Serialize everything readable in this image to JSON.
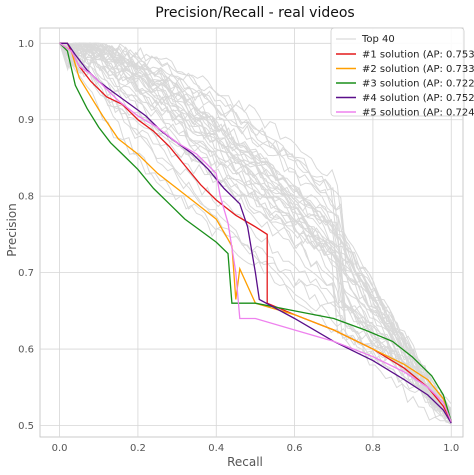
{
  "chart_data": {
    "type": "line",
    "title": "Precision/Recall - real videos",
    "xlabel": "Recall",
    "ylabel": "Precision",
    "xlim": [
      -0.05,
      1.03
    ],
    "ylim": [
      0.485,
      1.02
    ],
    "xticks": [
      "0.0",
      "0.2",
      "0.4",
      "0.6",
      "0.8",
      "1.0"
    ],
    "xtick_values": [
      0,
      0.2,
      0.4,
      0.6,
      0.8,
      1.0
    ],
    "yticks": [
      "0.5",
      "0.6",
      "0.7",
      "0.8",
      "0.9",
      "1.0"
    ],
    "ytick_values": [
      0.5,
      0.6,
      0.7,
      0.8,
      0.9,
      1.0
    ],
    "grid": true,
    "legend_position": "top-right",
    "background_series": {
      "name": "Top 40",
      "color": "#d9d9d9",
      "count": 40
    },
    "series": [
      {
        "name": "#1 solution (AP: 0.753)",
        "color": "#e31a1c",
        "x": [
          0.0,
          0.02,
          0.03,
          0.05,
          0.08,
          0.12,
          0.16,
          0.2,
          0.24,
          0.28,
          0.32,
          0.36,
          0.4,
          0.45,
          0.5,
          0.53,
          0.53,
          0.6,
          0.7,
          0.8,
          0.88,
          0.94,
          0.98,
          1.0
        ],
        "y": [
          1.0,
          1.0,
          0.99,
          0.97,
          0.95,
          0.93,
          0.92,
          0.9,
          0.885,
          0.865,
          0.84,
          0.815,
          0.795,
          0.775,
          0.76,
          0.75,
          0.66,
          0.645,
          0.625,
          0.6,
          0.575,
          0.55,
          0.525,
          0.505
        ]
      },
      {
        "name": "#2 solution (AP: 0.733)",
        "color": "#ff9f00",
        "x": [
          0.0,
          0.03,
          0.05,
          0.08,
          0.11,
          0.15,
          0.2,
          0.25,
          0.3,
          0.35,
          0.4,
          0.44,
          0.45,
          0.46,
          0.5,
          0.6,
          0.7,
          0.8,
          0.88,
          0.94,
          0.98,
          1.0
        ],
        "y": [
          1.0,
          0.99,
          0.955,
          0.93,
          0.905,
          0.875,
          0.855,
          0.83,
          0.81,
          0.79,
          0.77,
          0.735,
          0.665,
          0.705,
          0.66,
          0.645,
          0.625,
          0.6,
          0.58,
          0.56,
          0.535,
          0.505
        ]
      },
      {
        "name": "#3 solution (AP: 0.722)",
        "color": "#1a8f1a",
        "x": [
          0.0,
          0.02,
          0.04,
          0.07,
          0.1,
          0.13,
          0.16,
          0.2,
          0.24,
          0.28,
          0.32,
          0.36,
          0.4,
          0.43,
          0.44,
          0.5,
          0.6,
          0.7,
          0.78,
          0.85,
          0.9,
          0.95,
          0.98,
          1.0
        ],
        "y": [
          1.0,
          0.99,
          0.945,
          0.915,
          0.89,
          0.87,
          0.855,
          0.835,
          0.81,
          0.79,
          0.77,
          0.755,
          0.74,
          0.725,
          0.66,
          0.66,
          0.65,
          0.64,
          0.625,
          0.61,
          0.59,
          0.565,
          0.54,
          0.505
        ]
      },
      {
        "name": "#4 solution (AP: 0.752)",
        "color": "#5a0f8a",
        "x": [
          0.0,
          0.02,
          0.04,
          0.07,
          0.1,
          0.14,
          0.18,
          0.22,
          0.26,
          0.3,
          0.34,
          0.38,
          0.42,
          0.46,
          0.48,
          0.5,
          0.51,
          0.6,
          0.7,
          0.8,
          0.88,
          0.94,
          0.98,
          1.0
        ],
        "y": [
          1.0,
          1.0,
          0.985,
          0.965,
          0.95,
          0.935,
          0.92,
          0.905,
          0.885,
          0.87,
          0.855,
          0.835,
          0.81,
          0.79,
          0.76,
          0.7,
          0.665,
          0.64,
          0.61,
          0.585,
          0.56,
          0.54,
          0.52,
          0.503
        ]
      },
      {
        "name": "#5 solution (AP: 0.724)",
        "color": "#ee82ee",
        "x": [
          0.0,
          0.03,
          0.05,
          0.08,
          0.11,
          0.15,
          0.2,
          0.25,
          0.3,
          0.35,
          0.38,
          0.4,
          0.41,
          0.43,
          0.45,
          0.46,
          0.5,
          0.6,
          0.7,
          0.8,
          0.88,
          0.94,
          0.98,
          1.0
        ],
        "y": [
          1.0,
          0.99,
          0.97,
          0.96,
          0.945,
          0.925,
          0.905,
          0.89,
          0.87,
          0.855,
          0.84,
          0.83,
          0.8,
          0.765,
          0.7,
          0.64,
          0.64,
          0.625,
          0.61,
          0.59,
          0.57,
          0.55,
          0.53,
          0.505
        ]
      }
    ]
  }
}
